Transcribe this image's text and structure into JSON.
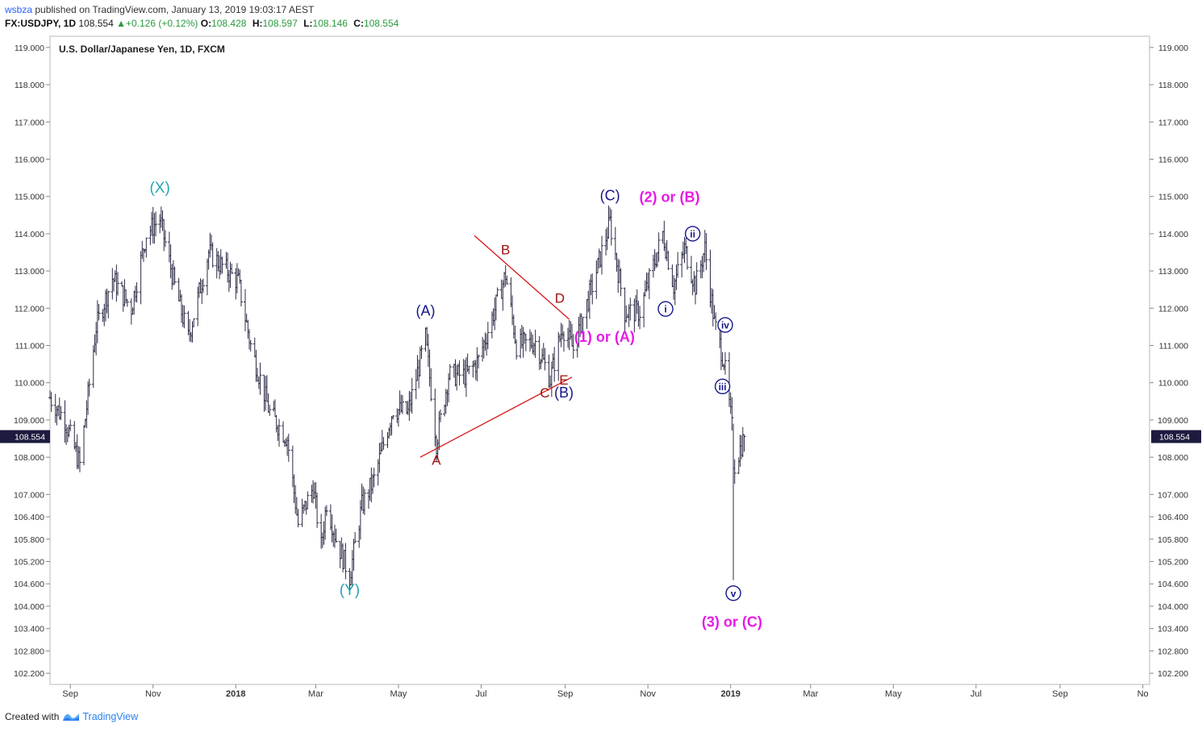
{
  "header": {
    "publisher": "wsbza",
    "published_text": "published on TradingView.com, January 13, 2019 19:03:17 AEST",
    "symbol": "FX:USDJPY, 1D",
    "last": "108.554",
    "change": "▲+0.126 (+0.12%)",
    "o_label": "O:",
    "o_value": "108.428",
    "h_label": "H:",
    "h_value": "108.597",
    "l_label": "L:",
    "l_value": "108.146",
    "c_label": "C:",
    "c_value": "108.554"
  },
  "footer": {
    "created_with": "Created with",
    "brand": "TradingView",
    "logo_icon": "tradingview-logo-icon"
  },
  "colors": {
    "bars": "#2b2b45",
    "price_tag": "#1c1a3e",
    "teal": "#26a5b5",
    "navy": "#15168a",
    "magenta": "#e61be6",
    "red": "#d61717",
    "darkred": "#a01010"
  },
  "chart_data": {
    "type": "ohlc",
    "title": "U.S. Dollar/Japanese Yen, 1D, FXCM",
    "ylim": [
      101.9,
      119.3
    ],
    "y_ticks": [
      "119.000",
      "118.000",
      "117.000",
      "116.000",
      "115.000",
      "114.000",
      "113.000",
      "112.000",
      "111.000",
      "110.000",
      "109.000",
      "108.000",
      "107.000",
      "106.400",
      "105.800",
      "105.200",
      "104.600",
      "104.000",
      "103.400",
      "102.800",
      "102.200"
    ],
    "x_ticks": [
      {
        "label": "Sep",
        "date": "2017-09-01",
        "bold": false
      },
      {
        "label": "Nov",
        "date": "2017-11-01",
        "bold": false
      },
      {
        "label": "2018",
        "date": "2018-01-01",
        "bold": true
      },
      {
        "label": "Mar",
        "date": "2018-03-01",
        "bold": false
      },
      {
        "label": "May",
        "date": "2018-05-01",
        "bold": false
      },
      {
        "label": "Jul",
        "date": "2018-07-01",
        "bold": false
      },
      {
        "label": "Sep",
        "date": "2018-09-01",
        "bold": false
      },
      {
        "label": "Nov",
        "date": "2018-11-01",
        "bold": false
      },
      {
        "label": "2019",
        "date": "2019-01-01",
        "bold": true
      },
      {
        "label": "Mar",
        "date": "2019-03-01",
        "bold": false
      },
      {
        "label": "May",
        "date": "2019-05-01",
        "bold": false
      },
      {
        "label": "Jul",
        "date": "2019-07-01",
        "bold": false
      },
      {
        "label": "Sep",
        "date": "2019-09-01",
        "bold": false
      },
      {
        "label": "No",
        "date": "2019-11-01",
        "bold": false
      }
    ],
    "xlim": [
      "2017-08-17",
      "2019-11-06"
    ],
    "last_price": "108.554",
    "price_path": [
      [
        "2017-08-17",
        109.6
      ],
      [
        "2017-08-28",
        109.0
      ],
      [
        "2017-09-08",
        107.8
      ],
      [
        "2017-09-20",
        111.5
      ],
      [
        "2017-10-02",
        112.8
      ],
      [
        "2017-10-16",
        112.0
      ],
      [
        "2017-10-27",
        114.0
      ],
      [
        "2017-11-06",
        114.4
      ],
      [
        "2017-11-17",
        112.6
      ],
      [
        "2017-11-27",
        111.2
      ],
      [
        "2017-12-12",
        113.5
      ],
      [
        "2017-12-20",
        113.2
      ],
      [
        "2018-01-03",
        112.7
      ],
      [
        "2018-01-12",
        111.0
      ],
      [
        "2018-01-26",
        109.2
      ],
      [
        "2018-02-08",
        108.5
      ],
      [
        "2018-02-16",
        106.2
      ],
      [
        "2018-02-27",
        107.2
      ],
      [
        "2018-03-05",
        105.6
      ],
      [
        "2018-03-09",
        106.8
      ],
      [
        "2018-03-16",
        105.8
      ],
      [
        "2018-03-26",
        104.8
      ],
      [
        "2018-04-04",
        106.7
      ],
      [
        "2018-04-13",
        107.4
      ],
      [
        "2018-04-27",
        109.3
      ],
      [
        "2018-05-08",
        109.2
      ],
      [
        "2018-05-21",
        111.2
      ],
      [
        "2018-05-29",
        108.4
      ],
      [
        "2018-06-07",
        110.2
      ],
      [
        "2018-06-20",
        110.2
      ],
      [
        "2018-06-29",
        110.6
      ],
      [
        "2018-07-19",
        112.9
      ],
      [
        "2018-07-27",
        111.0
      ],
      [
        "2018-08-10",
        111.1
      ],
      [
        "2018-08-21",
        110.1
      ],
      [
        "2018-08-30",
        111.5
      ],
      [
        "2018-09-07",
        110.9
      ],
      [
        "2018-09-21",
        112.6
      ],
      [
        "2018-10-04",
        114.3
      ],
      [
        "2018-10-15",
        111.9
      ],
      [
        "2018-10-26",
        111.9
      ],
      [
        "2018-11-12",
        114.0
      ],
      [
        "2018-11-20",
        112.6
      ],
      [
        "2018-11-28",
        113.6
      ],
      [
        "2018-12-06",
        112.6
      ],
      [
        "2018-12-13",
        113.6
      ],
      [
        "2018-12-20",
        111.6
      ],
      [
        "2018-12-27",
        110.6
      ],
      [
        "2019-01-02",
        108.8
      ],
      [
        "2019-01-03",
        107.7
      ],
      [
        "2019-01-11",
        108.55
      ]
    ],
    "annotations": [
      {
        "text": "(X)",
        "date": "2017-11-06",
        "price": 115.1,
        "color": "teal",
        "size": 19
      },
      {
        "text": "(Y)",
        "date": "2018-03-26",
        "price": 104.3,
        "color": "teal",
        "size": 19
      },
      {
        "text": "(A)",
        "date": "2018-05-21",
        "price": 111.8,
        "color": "navy",
        "size": 18
      },
      {
        "text": "(B)",
        "date": "2018-08-31",
        "price": 109.6,
        "color": "navy",
        "size": 18
      },
      {
        "text": "(C)",
        "date": "2018-10-04",
        "price": 114.9,
        "color": "navy",
        "size": 18
      },
      {
        "text": "(2) or (B)",
        "date": "2018-11-17",
        "price": 114.85,
        "color": "magenta",
        "size": 18,
        "bold": true
      },
      {
        "text": "(1) or (A)",
        "date": "2018-09-30",
        "price": 111.1,
        "color": "magenta",
        "size": 18,
        "bold": true
      },
      {
        "text": "(3) or (C)",
        "date": "2019-01-02",
        "price": 103.45,
        "color": "magenta",
        "size": 18,
        "bold": true
      },
      {
        "text": "A",
        "date": "2018-05-29",
        "price": 107.8,
        "color": "darkred",
        "size": 17
      },
      {
        "text": "B",
        "date": "2018-07-19",
        "price": 113.45,
        "color": "darkred",
        "size": 17
      },
      {
        "text": "C",
        "date": "2018-08-17",
        "price": 109.6,
        "color": "darkred",
        "size": 17
      },
      {
        "text": "D",
        "date": "2018-08-28",
        "price": 112.15,
        "color": "darkred",
        "size": 17
      },
      {
        "text": "E",
        "date": "2018-08-31",
        "price": 109.95,
        "color": "darkred",
        "size": 17
      }
    ],
    "circled_labels": [
      {
        "text": "i",
        "date": "2018-11-14",
        "price": 111.98
      },
      {
        "text": "ii",
        "date": "2018-12-04",
        "price": 114.0
      },
      {
        "text": "iii",
        "date": "2018-12-26",
        "price": 109.9
      },
      {
        "text": "iv",
        "date": "2018-12-28",
        "price": 111.55
      },
      {
        "text": "v",
        "date": "2019-01-03",
        "price": 104.35
      }
    ],
    "trendlines": [
      {
        "from": [
          "2018-05-17",
          108.0
        ],
        "to": [
          "2018-09-06",
          110.15
        ],
        "color": "red"
      },
      {
        "from": [
          "2018-06-26",
          113.95
        ],
        "to": [
          "2018-09-04",
          111.7
        ],
        "color": "red"
      }
    ]
  }
}
